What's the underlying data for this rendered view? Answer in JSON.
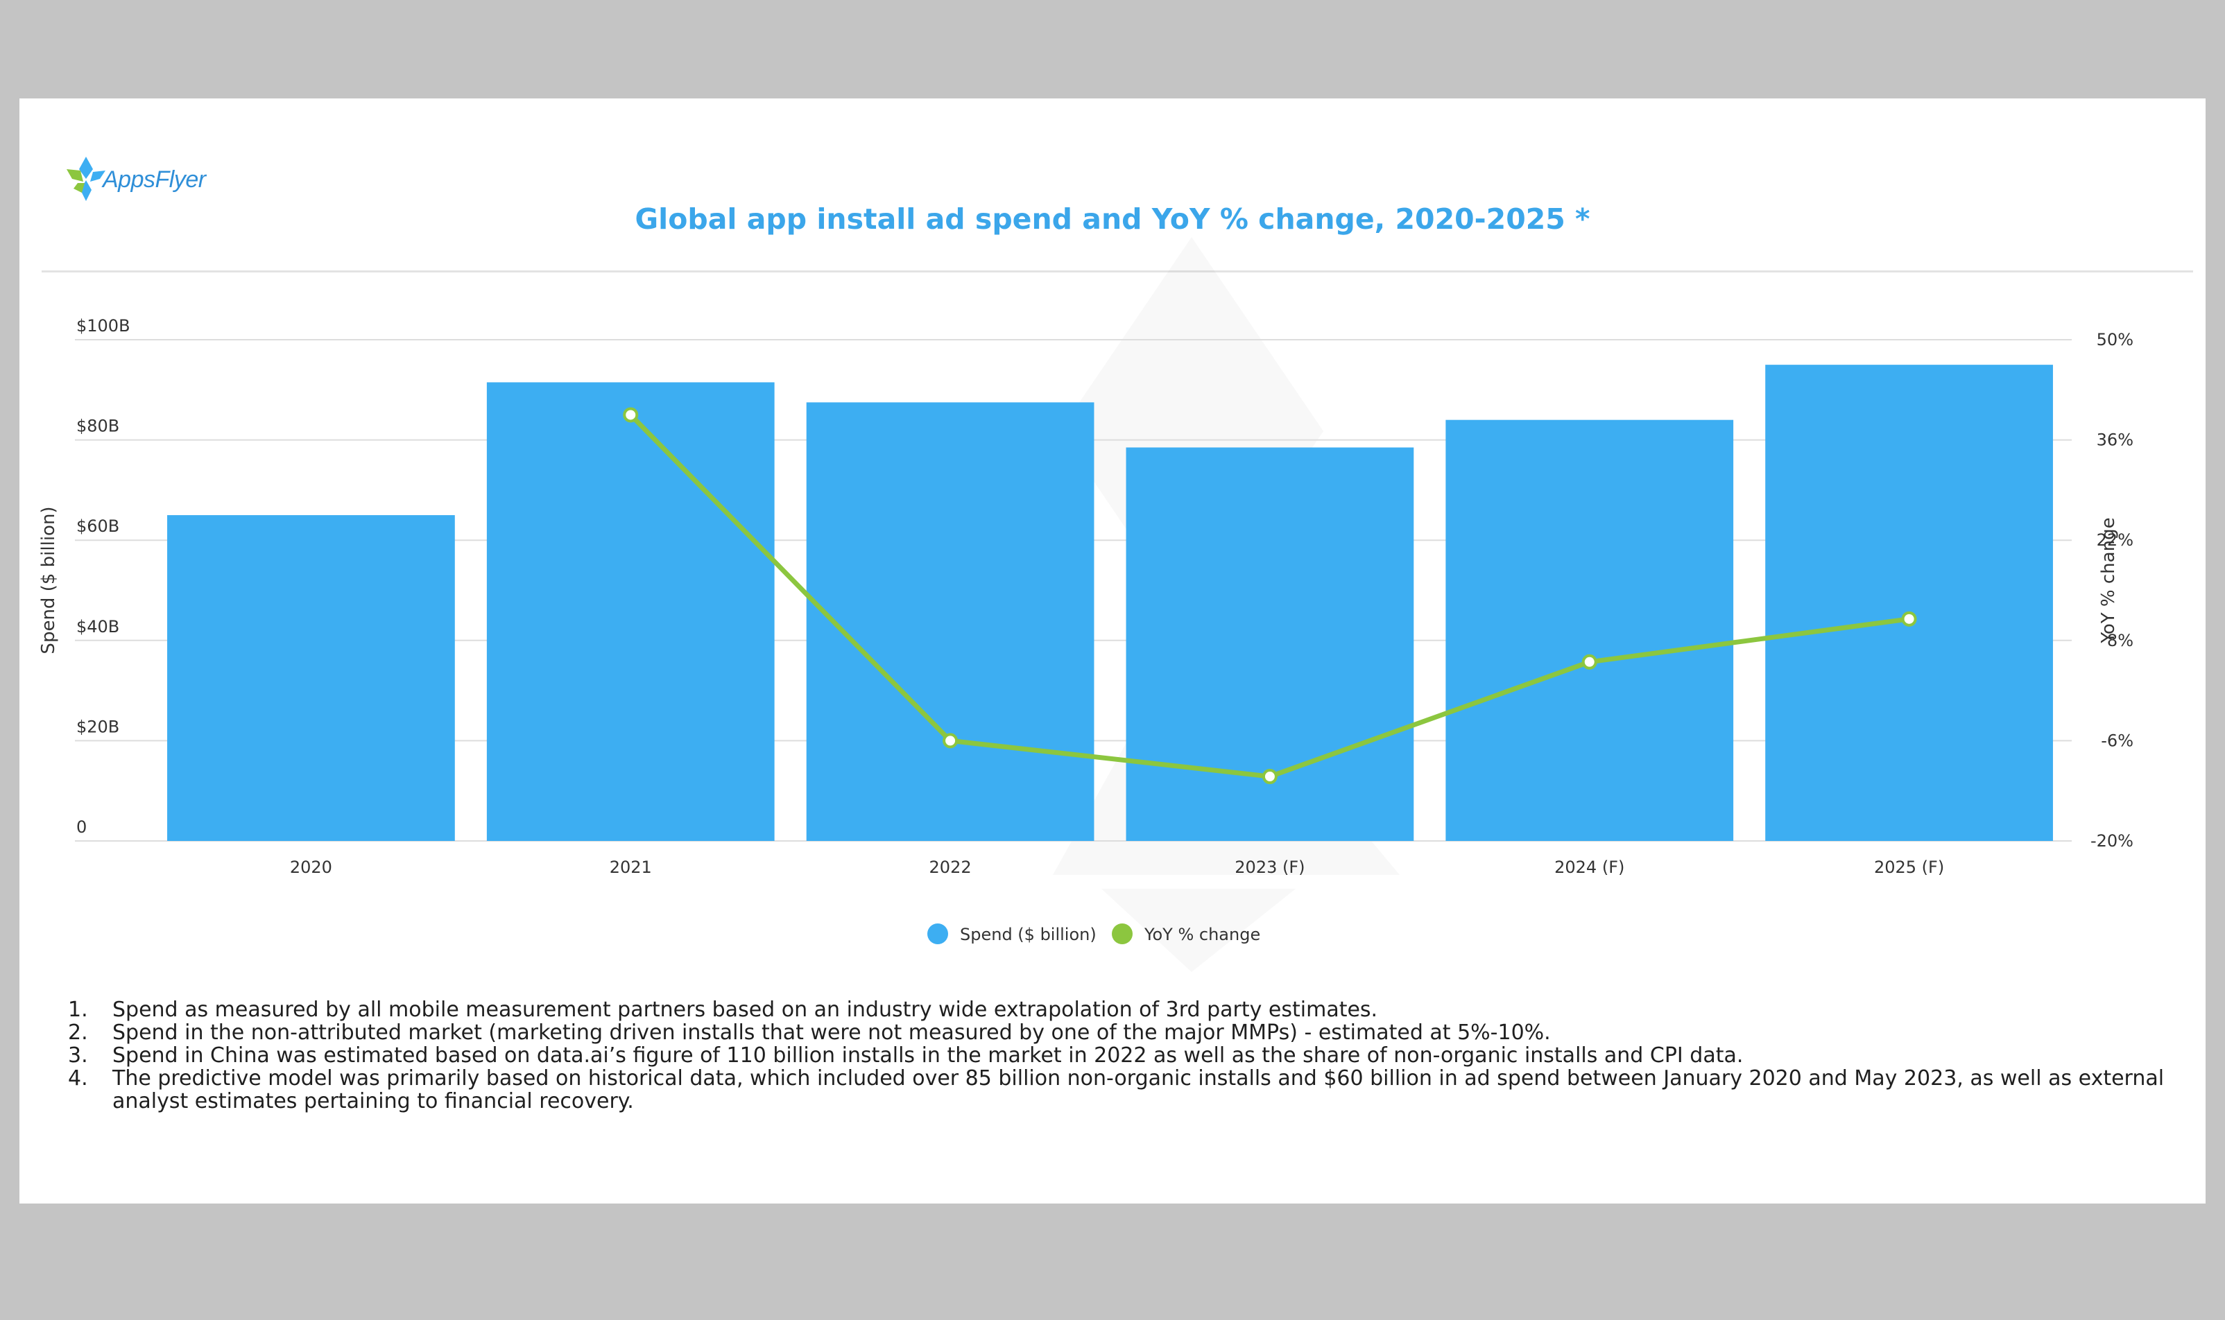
{
  "brand": {
    "logo_text": "AppsFlyer"
  },
  "chart_data": {
    "type": "bar",
    "title": "Global app install ad spend and YoY % change, 2020-2025 *",
    "categories": [
      "2020",
      "2021",
      "2022",
      "2023 (F)",
      "2024 (F)",
      "2025 (F)"
    ],
    "series": [
      {
        "name": "Spend ($ billion)",
        "type": "bar",
        "axis": "left",
        "color": "#3daef2",
        "values": [
          65,
          91.5,
          87.5,
          78.5,
          84,
          95
        ]
      },
      {
        "name": "YoY % change",
        "type": "line",
        "axis": "right",
        "color": "#8cc63f",
        "values": [
          null,
          39.5,
          -6,
          -11,
          5,
          11
        ]
      }
    ],
    "ylabel": "Spend ($ billion)",
    "y2label": "YoY % change",
    "ylim": [
      0,
      100
    ],
    "y2lim": [
      -20,
      50
    ],
    "yticks": [
      "0",
      "$20B",
      "$40B",
      "$60B",
      "$80B",
      "$100B"
    ],
    "y2ticks": [
      "-20%",
      "-6%",
      "8%",
      "22%",
      "36%",
      "50%"
    ],
    "grid": true,
    "legend_position": "bottom-center"
  },
  "footnotes": [
    {
      "num": "1.",
      "text": "Spend as measured by all mobile measurement partners based on an industry wide extrapolation of 3rd party estimates."
    },
    {
      "num": "2.",
      "text": "Spend in the non-attributed market (marketing driven installs that were not measured by one of the major MMPs) - estimated at 5%-10%."
    },
    {
      "num": "3.",
      "text": "Spend in China was estimated based on data.ai’s figure of 110 billion installs in the market in 2022 as well as the share of non-organic installs and CPI data."
    },
    {
      "num": "4.",
      "text": "The predictive model was primarily based on historical data, which included over 85 billion non-organic installs and $60 billion in ad spend between January 2020 and May 2023, as well as external analyst estimates pertaining to financial recovery."
    }
  ]
}
